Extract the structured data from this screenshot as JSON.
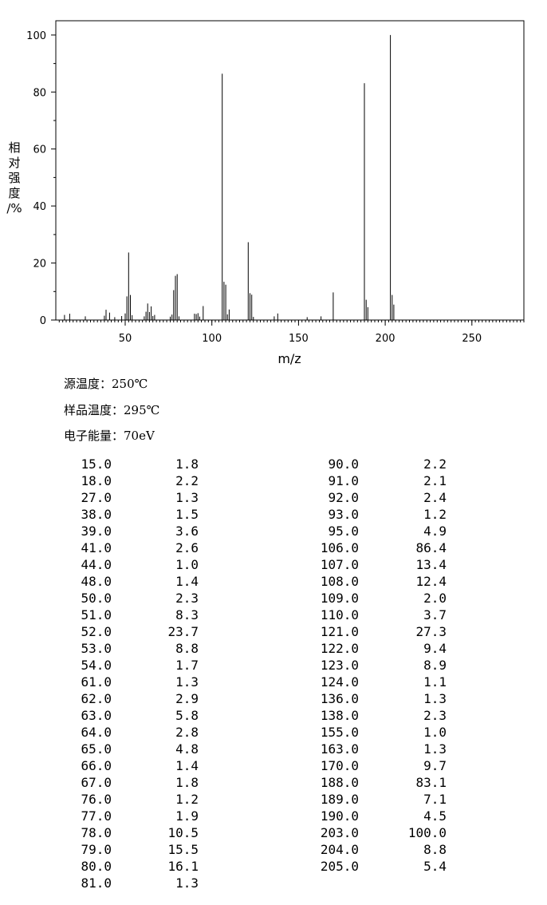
{
  "chart_data": {
    "type": "bar",
    "title": "",
    "xlabel": "m/z",
    "ylabel_chars": [
      "相",
      "对",
      "强",
      "度",
      "/%"
    ],
    "xlim": [
      10,
      280
    ],
    "ylim": [
      0,
      105
    ],
    "xticks": [
      50,
      100,
      150,
      200,
      250
    ],
    "yticks": [
      0,
      20,
      40,
      60,
      80,
      100
    ],
    "bar_color": "#000000",
    "peaks": [
      [
        15,
        1.8
      ],
      [
        18,
        2.2
      ],
      [
        27,
        1.3
      ],
      [
        38,
        1.5
      ],
      [
        39,
        3.6
      ],
      [
        41,
        2.6
      ],
      [
        44,
        1.0
      ],
      [
        48,
        1.4
      ],
      [
        50,
        2.3
      ],
      [
        51,
        8.3
      ],
      [
        52,
        23.7
      ],
      [
        53,
        8.8
      ],
      [
        54,
        1.7
      ],
      [
        61,
        1.3
      ],
      [
        62,
        2.9
      ],
      [
        63,
        5.8
      ],
      [
        64,
        2.8
      ],
      [
        65,
        4.8
      ],
      [
        66,
        1.4
      ],
      [
        67,
        1.8
      ],
      [
        76,
        1.2
      ],
      [
        77,
        1.9
      ],
      [
        78,
        10.5
      ],
      [
        79,
        15.5
      ],
      [
        80,
        16.1
      ],
      [
        81,
        1.3
      ],
      [
        90,
        2.2
      ],
      [
        91,
        2.1
      ],
      [
        92,
        2.4
      ],
      [
        93,
        1.2
      ],
      [
        95,
        4.9
      ],
      [
        106,
        86.4
      ],
      [
        107,
        13.4
      ],
      [
        108,
        12.4
      ],
      [
        109,
        2.0
      ],
      [
        110,
        3.7
      ],
      [
        121,
        27.3
      ],
      [
        122,
        9.4
      ],
      [
        123,
        8.9
      ],
      [
        124,
        1.1
      ],
      [
        136,
        1.3
      ],
      [
        138,
        2.3
      ],
      [
        155,
        1.0
      ],
      [
        163,
        1.3
      ],
      [
        170,
        9.7
      ],
      [
        188,
        83.1
      ],
      [
        189,
        7.1
      ],
      [
        190,
        4.5
      ],
      [
        203,
        100.0
      ],
      [
        204,
        8.8
      ],
      [
        205,
        5.4
      ]
    ]
  },
  "info": {
    "source_temp": "源温度：250℃",
    "sample_temp": "样品温度：295℃",
    "electron_energy": "电子能量：70eV"
  },
  "table": {
    "left": [
      [
        "15.0",
        "1.8"
      ],
      [
        "18.0",
        "2.2"
      ],
      [
        "27.0",
        "1.3"
      ],
      [
        "38.0",
        "1.5"
      ],
      [
        "39.0",
        "3.6"
      ],
      [
        "41.0",
        "2.6"
      ],
      [
        "44.0",
        "1.0"
      ],
      [
        "48.0",
        "1.4"
      ],
      [
        "50.0",
        "2.3"
      ],
      [
        "51.0",
        "8.3"
      ],
      [
        "52.0",
        "23.7"
      ],
      [
        "53.0",
        "8.8"
      ],
      [
        "54.0",
        "1.7"
      ],
      [
        "61.0",
        "1.3"
      ],
      [
        "62.0",
        "2.9"
      ],
      [
        "63.0",
        "5.8"
      ],
      [
        "64.0",
        "2.8"
      ],
      [
        "65.0",
        "4.8"
      ],
      [
        "66.0",
        "1.4"
      ],
      [
        "67.0",
        "1.8"
      ],
      [
        "76.0",
        "1.2"
      ],
      [
        "77.0",
        "1.9"
      ],
      [
        "78.0",
        "10.5"
      ],
      [
        "79.0",
        "15.5"
      ],
      [
        "80.0",
        "16.1"
      ],
      [
        "81.0",
        "1.3"
      ]
    ],
    "right": [
      [
        "90.0",
        "2.2"
      ],
      [
        "91.0",
        "2.1"
      ],
      [
        "92.0",
        "2.4"
      ],
      [
        "93.0",
        "1.2"
      ],
      [
        "95.0",
        "4.9"
      ],
      [
        "106.0",
        "86.4"
      ],
      [
        "107.0",
        "13.4"
      ],
      [
        "108.0",
        "12.4"
      ],
      [
        "109.0",
        "2.0"
      ],
      [
        "110.0",
        "3.7"
      ],
      [
        "121.0",
        "27.3"
      ],
      [
        "122.0",
        "9.4"
      ],
      [
        "123.0",
        "8.9"
      ],
      [
        "124.0",
        "1.1"
      ],
      [
        "136.0",
        "1.3"
      ],
      [
        "138.0",
        "2.3"
      ],
      [
        "155.0",
        "1.0"
      ],
      [
        "163.0",
        "1.3"
      ],
      [
        "170.0",
        "9.7"
      ],
      [
        "188.0",
        "83.1"
      ],
      [
        "189.0",
        "7.1"
      ],
      [
        "190.0",
        "4.5"
      ],
      [
        "203.0",
        "100.0"
      ],
      [
        "204.0",
        "8.8"
      ],
      [
        "205.0",
        "5.4"
      ]
    ]
  }
}
